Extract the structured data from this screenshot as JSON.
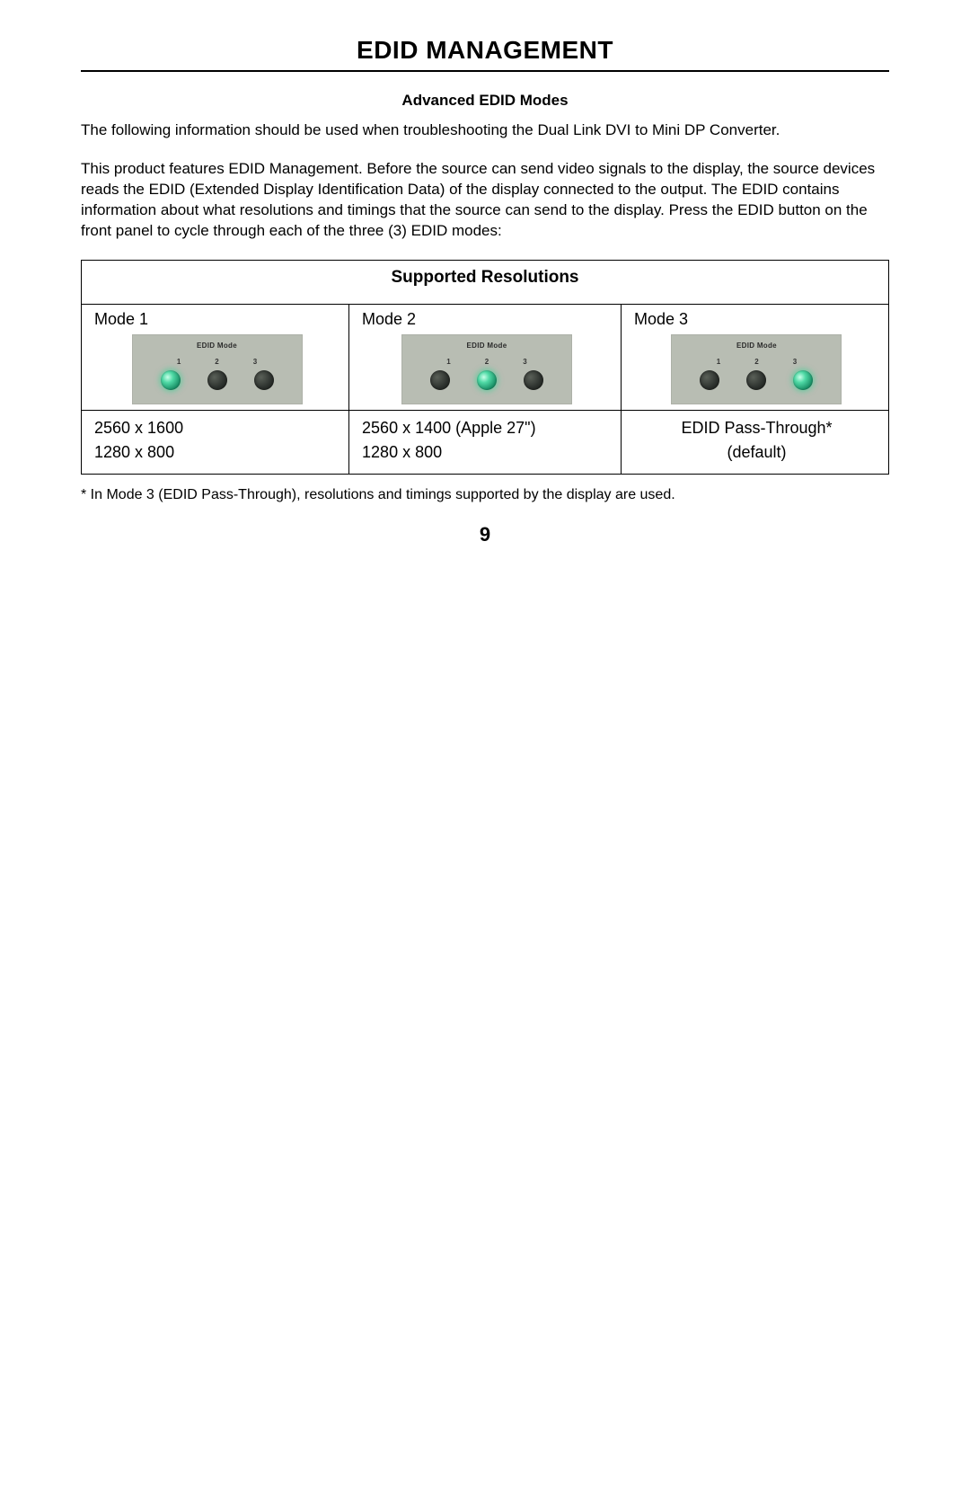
{
  "main_title": "EDID MANAGEMENT",
  "subtitle": "Advanced EDID Modes",
  "intro_para": "The following information should be used when troubleshooting the Dual Link DVI to Mini DP Converter.",
  "body_para": "This product features EDID Management.  Before the source can send video signals to the display, the source devices reads the EDID (Extended Display Identification Data) of the display connected to the output.  The EDID contains information about what resolutions and timings that the source can send to the display.  Press the EDID button on the front panel to cycle through each of the three (3) EDID modes:",
  "table": {
    "title": "Supported Resolutions",
    "panel_label": "EDID Mode",
    "panel_numbers": [
      "1",
      "2",
      "3"
    ],
    "columns": [
      {
        "header": "Mode 1",
        "led_on_index": 0,
        "rows": [
          "2560 x 1600",
          "1280 x 800"
        ]
      },
      {
        "header": "Mode 2",
        "led_on_index": 1,
        "rows": [
          "2560 x 1400 (Apple 27\")",
          "1280 x 800"
        ]
      },
      {
        "header": "Mode 3",
        "led_on_index": 2,
        "rows_combined": "EDID Pass-Through*\n(default)"
      }
    ]
  },
  "footnote": "* In Mode 3 (EDID Pass-Through), resolutions and timings supported by the display are used.",
  "page_number": "9",
  "colors": {
    "text": "#000000",
    "background": "#ffffff",
    "panel_bg": "#b8bdb3",
    "led_off": "#2f3430",
    "led_on": "#4fd9a5"
  }
}
